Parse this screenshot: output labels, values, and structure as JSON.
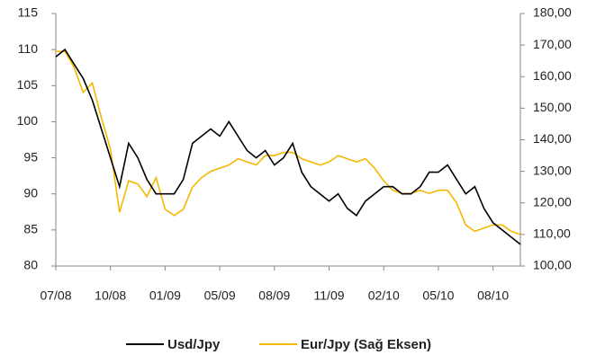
{
  "chart_data": {
    "type": "line",
    "categories": [
      "07/08",
      null,
      null,
      null,
      null,
      null,
      "10/08",
      null,
      null,
      null,
      null,
      null,
      "01/09",
      null,
      null,
      null,
      null,
      null,
      "05/09",
      null,
      null,
      null,
      null,
      null,
      "08/09",
      null,
      null,
      null,
      null,
      null,
      "11/09",
      null,
      null,
      null,
      null,
      null,
      "02/10",
      null,
      null,
      null,
      null,
      null,
      "05/10",
      null,
      null,
      null,
      null,
      null,
      "08/10",
      null,
      null,
      null
    ],
    "series": [
      {
        "name": "Usd/Jpy",
        "color": "#000000",
        "axis": "y",
        "values": [
          109,
          110,
          108,
          106,
          103,
          99,
          95,
          91,
          97,
          95,
          92,
          90,
          90,
          90,
          92,
          97,
          98,
          99,
          98,
          100,
          98,
          96,
          95,
          96,
          94,
          95,
          97,
          93,
          91,
          90,
          89,
          90,
          88,
          87,
          89,
          90,
          91,
          91,
          90,
          90,
          91,
          93,
          93,
          94,
          92,
          90,
          91,
          88,
          86,
          85,
          84,
          83
        ]
      },
      {
        "name": "Eur/Jpy (Sağ Eksen)",
        "color": "#f5b800",
        "axis": "y2",
        "values": [
          168,
          168,
          163,
          155,
          158,
          147,
          137,
          117,
          127,
          126,
          122,
          128,
          118,
          116,
          118,
          125,
          128,
          130,
          131,
          132,
          134,
          133,
          132,
          135,
          135,
          136,
          136,
          134,
          133,
          132,
          133,
          135,
          134,
          133,
          134,
          131,
          127,
          124,
          123,
          123,
          124,
          123,
          124,
          124,
          120,
          113,
          111,
          112,
          113,
          113,
          111,
          110
        ]
      }
    ],
    "ylim": [
      80,
      115
    ],
    "yticks": [
      80,
      85,
      90,
      95,
      100,
      105,
      110,
      115
    ],
    "y2lim": [
      100,
      180
    ],
    "y2ticks": [
      {
        "value": 100,
        "label": "100,00"
      },
      {
        "value": 110,
        "label": "110,00"
      },
      {
        "value": 120,
        "label": "120,00"
      },
      {
        "value": 130,
        "label": "130,00"
      },
      {
        "value": 140,
        "label": "140,00"
      },
      {
        "value": 150,
        "label": "150,00"
      },
      {
        "value": 160,
        "label": "160,00"
      },
      {
        "value": 170,
        "label": "170,00"
      },
      {
        "value": 180,
        "label": "180,00"
      }
    ],
    "legend": "bottom"
  }
}
